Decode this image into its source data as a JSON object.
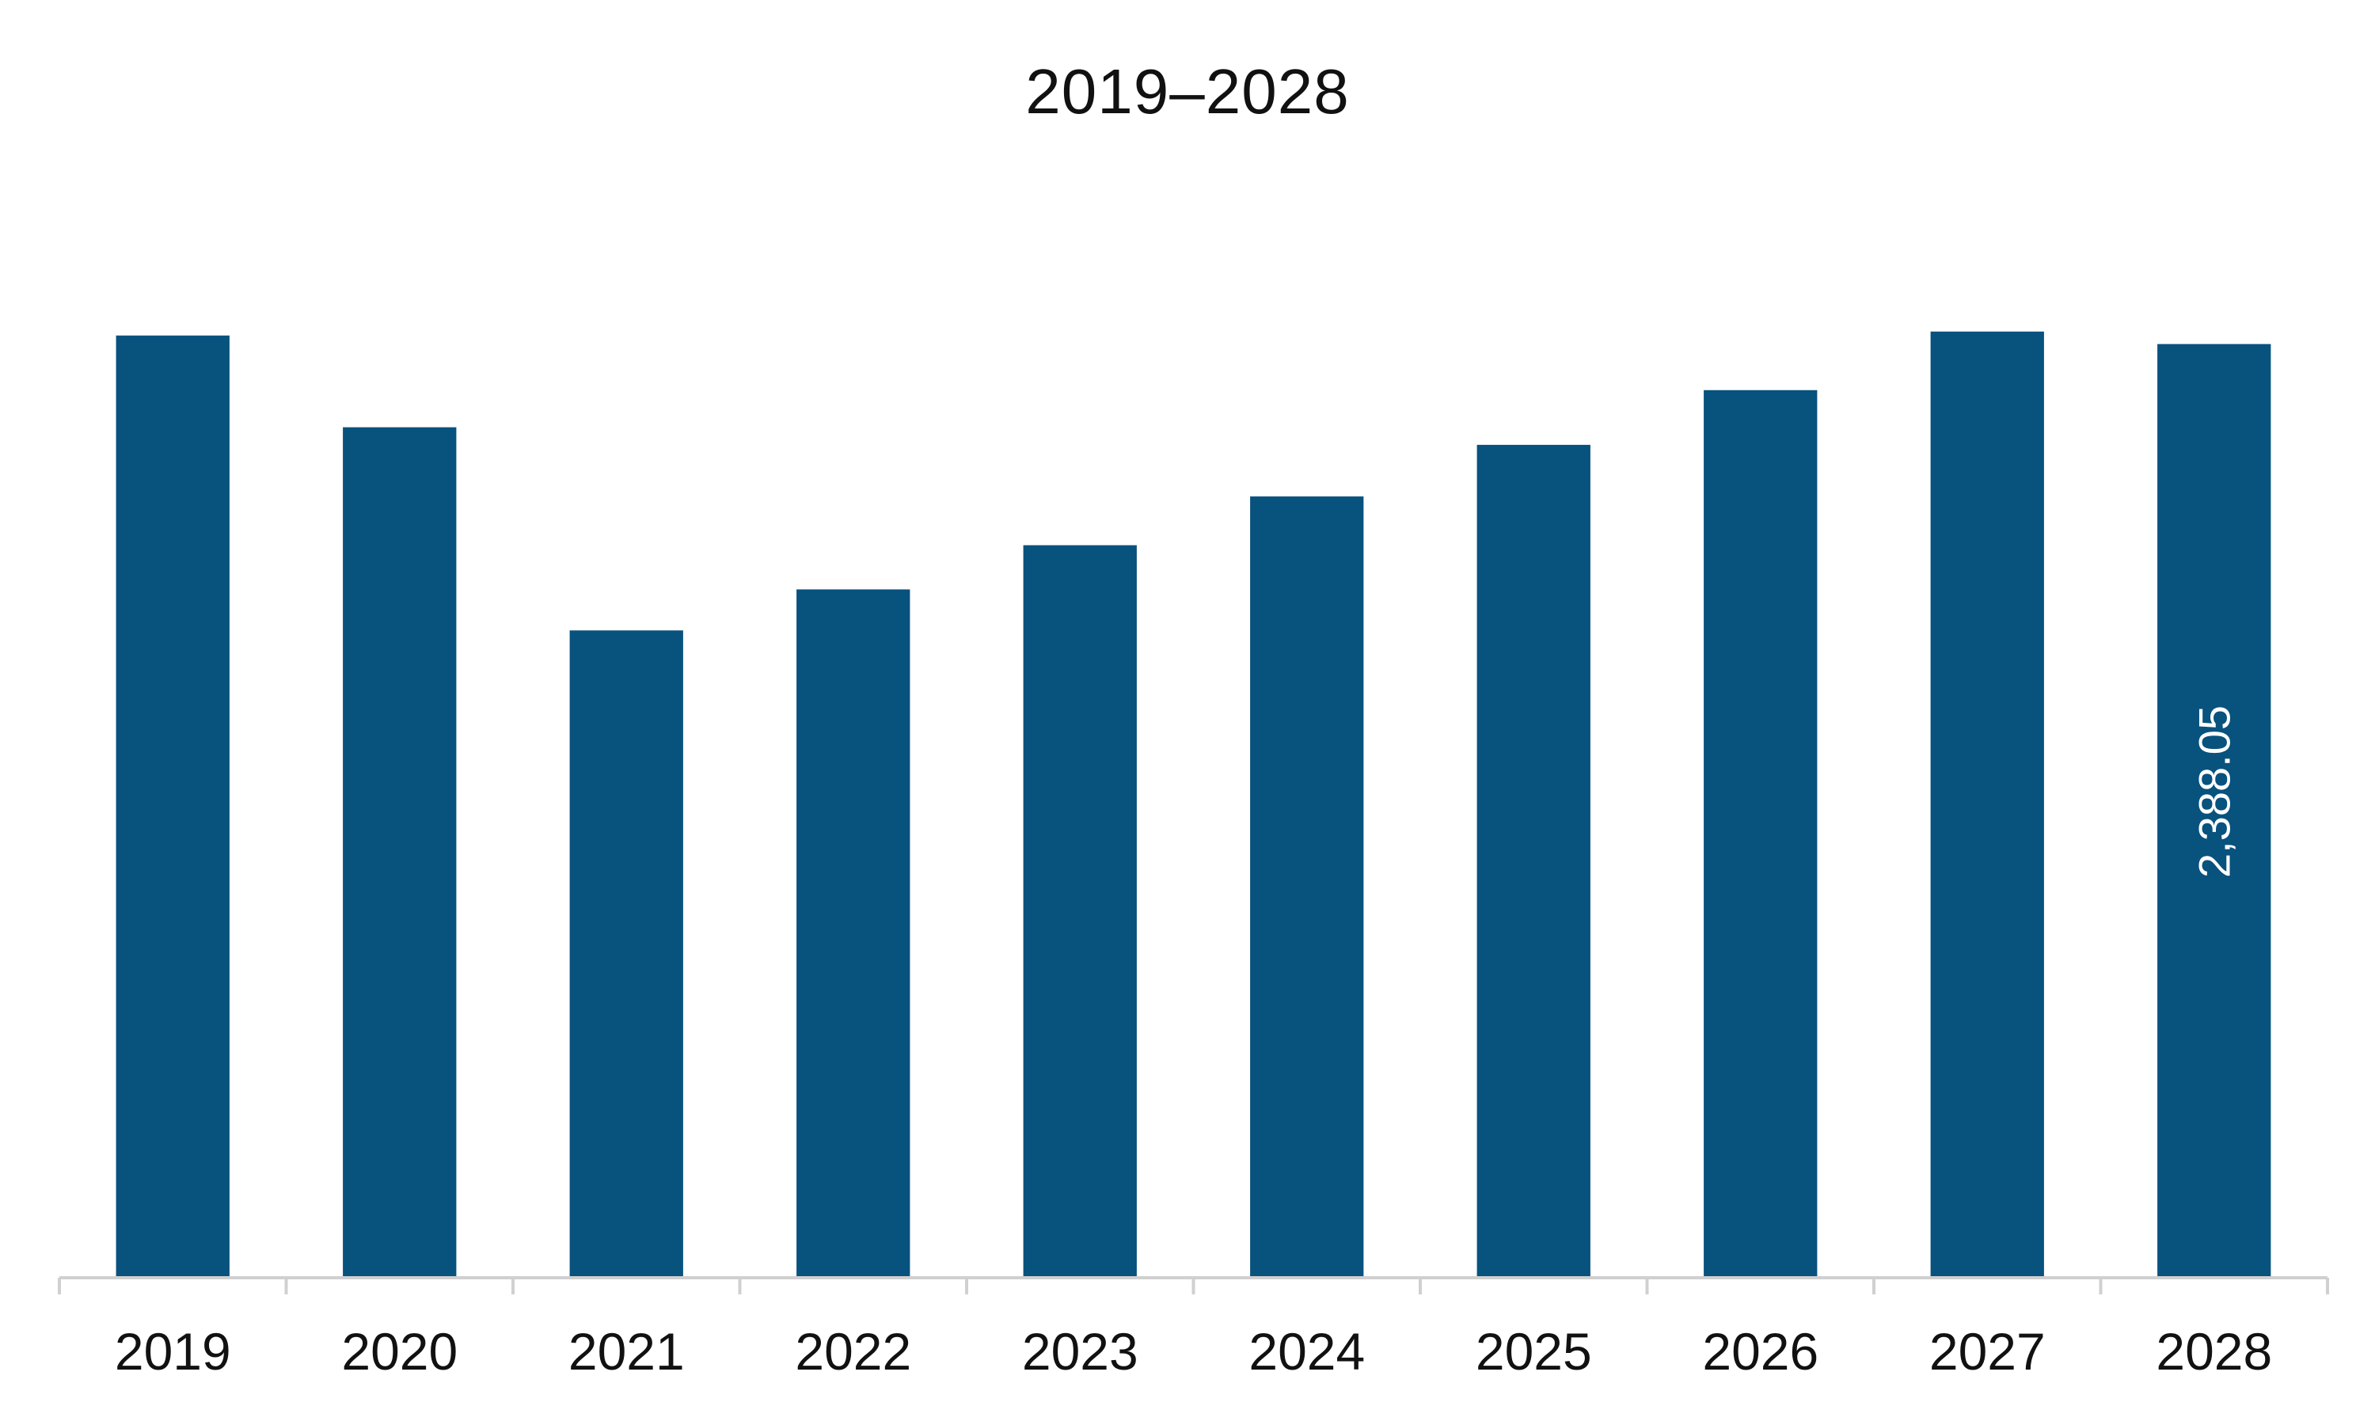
{
  "chart_data": {
    "type": "bar",
    "title": "2019–2028",
    "xlabel": "",
    "ylabel": "",
    "categories": [
      "2019",
      "2020",
      "2021",
      "2022",
      "2023",
      "2024",
      "2025",
      "2026",
      "2027",
      "2028"
    ],
    "values": [
      2410,
      2175,
      1655,
      1760,
      1873,
      1998,
      2130,
      2270,
      2420,
      2388.05
    ],
    "data_labels": [
      "",
      "",
      "",
      "",
      "",
      "",
      "",
      "",
      "",
      "2,388.05"
    ],
    "ylim": [
      0,
      2600
    ],
    "grid": false,
    "legend": "none",
    "colors": {
      "bar": "#08527E",
      "axis": "#D0D0D0",
      "text": "#111111",
      "data_label": "#FFFFFF"
    }
  }
}
